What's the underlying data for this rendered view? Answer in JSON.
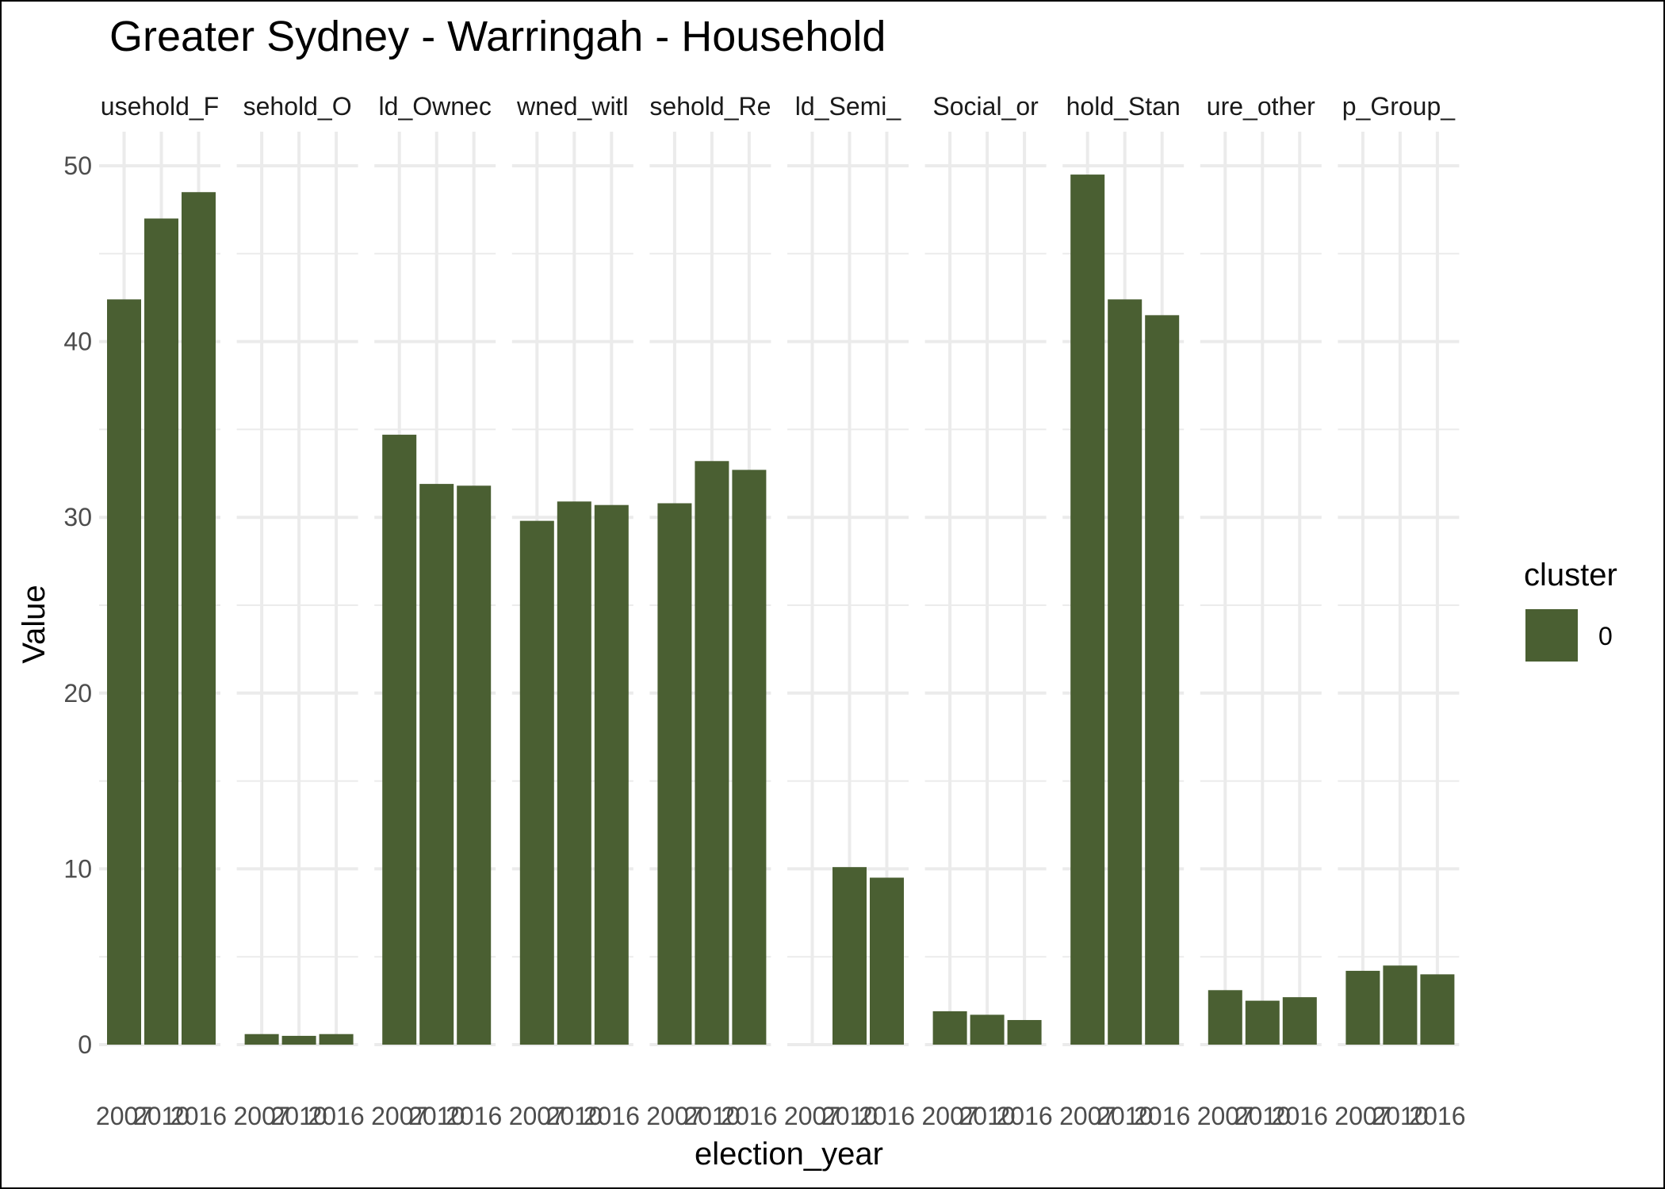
{
  "chart_data": {
    "type": "bar",
    "title": "Greater Sydney - Warringah - Household",
    "xlabel": "election_year",
    "ylabel": "Value",
    "ylim": [
      0,
      52
    ],
    "yticks": [
      0,
      10,
      20,
      30,
      40,
      50
    ],
    "grid": true,
    "legend": {
      "title": "cluster",
      "entries": [
        "0"
      ],
      "placement": "right"
    },
    "bar_color": "#4a5f32",
    "categories": [
      "2007",
      "2010",
      "2016"
    ],
    "panels": [
      {
        "label": "usehold_F",
        "values": [
          42.4,
          47.0,
          48.5
        ]
      },
      {
        "label": "sehold_O",
        "values": [
          0.6,
          0.5,
          0.6
        ]
      },
      {
        "label": "ld_Ownec",
        "values": [
          34.7,
          31.9,
          31.8
        ]
      },
      {
        "label": "wned_witl",
        "values": [
          29.8,
          30.9,
          30.7
        ]
      },
      {
        "label": "sehold_Re",
        "values": [
          30.8,
          33.2,
          32.7
        ]
      },
      {
        "label": "ld_Semi_",
        "values": [
          null,
          10.1,
          9.5
        ]
      },
      {
        "label": "Social_or",
        "values": [
          1.9,
          1.7,
          1.4
        ]
      },
      {
        "label": "hold_Stan",
        "values": [
          49.5,
          42.4,
          41.5
        ]
      },
      {
        "label": "ure_other",
        "values": [
          3.1,
          2.5,
          2.7
        ]
      },
      {
        "label": "p_Group_",
        "values": [
          4.2,
          4.5,
          4.0
        ]
      }
    ]
  }
}
